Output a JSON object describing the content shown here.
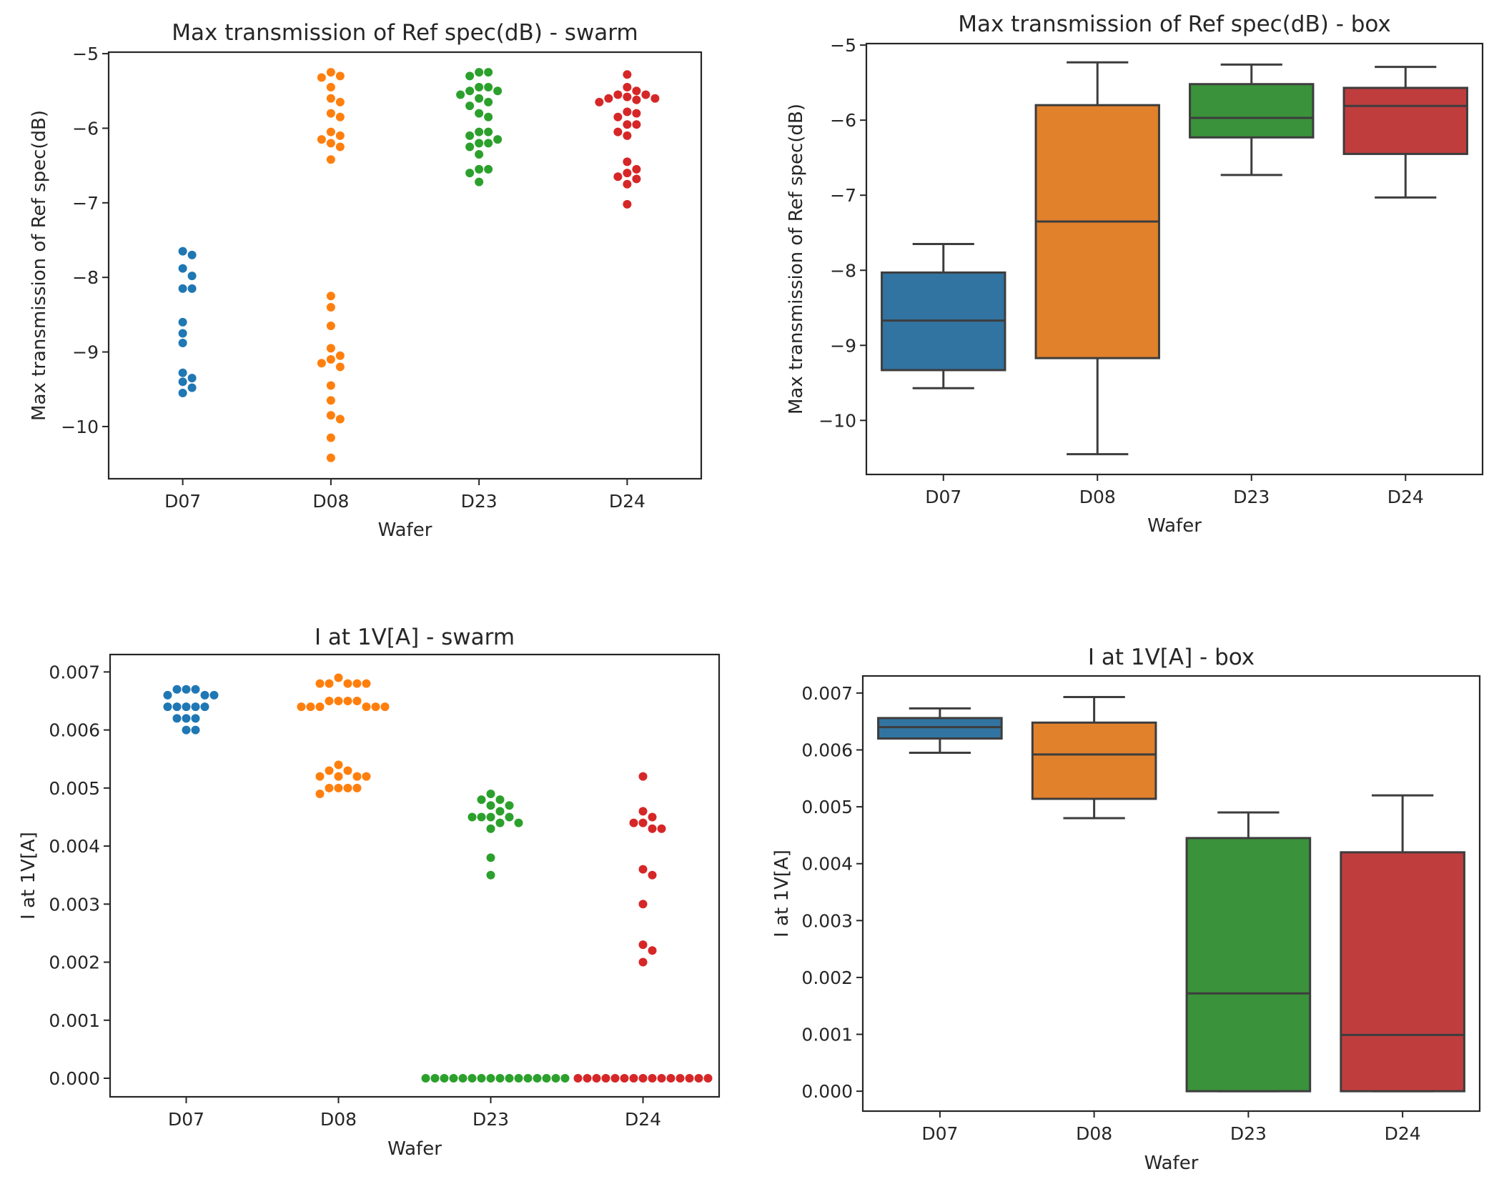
{
  "colors": {
    "D07": "#1f77b4",
    "D08": "#ff7f0e",
    "D23": "#2ca02c",
    "D24": "#d62728",
    "box_D07": "#3274a1",
    "box_D08": "#e1812c",
    "box_D23": "#3a923a",
    "box_D24": "#c03d3e",
    "line": "#3d3d3d"
  },
  "chart_data": [
    {
      "id": "swarm1",
      "type": "scatter",
      "title": "Max transmission of Ref spec(dB) - swarm",
      "xlabel": "Wafer",
      "ylabel": "Max transmission of Ref spec(dB)",
      "categories": [
        "D07",
        "D08",
        "D23",
        "D24"
      ],
      "ylim": [
        -10.7,
        -4.98
      ],
      "yticks": [
        -5,
        -6,
        -7,
        -8,
        -9,
        -10
      ],
      "ytick_labels": [
        "−5",
        "−6",
        "−7",
        "−8",
        "−9",
        "−10"
      ],
      "series": [
        {
          "name": "D07",
          "values": [
            -7.65,
            -7.7,
            -7.88,
            -7.98,
            -8.15,
            -8.15,
            -8.6,
            -8.75,
            -8.88,
            -9.28,
            -9.35,
            -9.4,
            -9.48,
            -9.55
          ]
        },
        {
          "name": "D08",
          "values": [
            -5.25,
            -5.3,
            -5.32,
            -5.45,
            -5.6,
            -5.65,
            -5.8,
            -5.85,
            -6.05,
            -6.1,
            -6.15,
            -6.2,
            -6.25,
            -6.42,
            -8.25,
            -8.4,
            -8.65,
            -8.95,
            -9.05,
            -9.1,
            -9.15,
            -9.2,
            -9.45,
            -9.65,
            -9.85,
            -9.9,
            -10.15,
            -10.42
          ]
        },
        {
          "name": "D23",
          "values": [
            -5.25,
            -5.25,
            -5.3,
            -5.45,
            -5.45,
            -5.5,
            -5.5,
            -5.55,
            -5.6,
            -5.65,
            -5.7,
            -5.8,
            -5.85,
            -6.05,
            -6.05,
            -6.1,
            -6.15,
            -6.2,
            -6.2,
            -6.25,
            -6.35,
            -6.55,
            -6.55,
            -6.6,
            -6.72
          ]
        },
        {
          "name": "D24",
          "values": [
            -5.28,
            -5.45,
            -5.5,
            -5.55,
            -5.55,
            -5.58,
            -5.6,
            -5.6,
            -5.62,
            -5.65,
            -5.78,
            -5.8,
            -5.85,
            -5.95,
            -5.95,
            -6.05,
            -6.1,
            -6.45,
            -6.55,
            -6.6,
            -6.65,
            -6.68,
            -6.75,
            -7.02
          ]
        }
      ]
    },
    {
      "id": "box1",
      "type": "box",
      "title": "Max transmission of Ref spec(dB) - box",
      "xlabel": "Wafer",
      "ylabel": "Max transmission of Ref spec(dB)",
      "categories": [
        "D07",
        "D08",
        "D23",
        "D24"
      ],
      "ylim": [
        -10.72,
        -4.98
      ],
      "yticks": [
        -5,
        -6,
        -7,
        -8,
        -9,
        -10
      ],
      "ytick_labels": [
        "−5",
        "−6",
        "−7",
        "−8",
        "−9",
        "−10"
      ],
      "boxes": [
        {
          "name": "D07",
          "whislo": -9.57,
          "q1": -9.33,
          "med": -8.67,
          "q3": -8.03,
          "whishi": -7.65
        },
        {
          "name": "D08",
          "whislo": -10.45,
          "q1": -9.17,
          "med": -7.35,
          "q3": -5.8,
          "whishi": -5.23
        },
        {
          "name": "D23",
          "whislo": -6.73,
          "q1": -6.23,
          "med": -5.97,
          "q3": -5.52,
          "whishi": -5.26
        },
        {
          "name": "D24",
          "whislo": -7.03,
          "q1": -6.45,
          "med": -5.81,
          "q3": -5.57,
          "whishi": -5.29
        }
      ]
    },
    {
      "id": "swarm2",
      "type": "scatter",
      "title": "I at 1V[A] - swarm",
      "xlabel": "Wafer",
      "ylabel": "I at 1V[A]",
      "categories": [
        "D07",
        "D08",
        "D23",
        "D24"
      ],
      "ylim": [
        -0.00032,
        0.0073
      ],
      "yticks": [
        0,
        0.001,
        0.002,
        0.003,
        0.004,
        0.005,
        0.006,
        0.007
      ],
      "ytick_labels": [
        "0.000",
        "0.001",
        "0.002",
        "0.003",
        "0.004",
        "0.005",
        "0.006",
        "0.007"
      ],
      "series": [
        {
          "name": "D07",
          "values": [
            0.0067,
            0.0067,
            0.0067,
            0.0066,
            0.0066,
            0.0066,
            0.0064,
            0.0064,
            0.0064,
            0.0064,
            0.0064,
            0.0062,
            0.0062,
            0.0062,
            0.006,
            0.006
          ]
        },
        {
          "name": "D08",
          "values": [
            0.0069,
            0.0068,
            0.0068,
            0.0068,
            0.0068,
            0.0068,
            0.0065,
            0.0065,
            0.0065,
            0.0065,
            0.0064,
            0.0064,
            0.0064,
            0.0064,
            0.0064,
            0.0064,
            0.0054,
            0.0053,
            0.0053,
            0.0052,
            0.0052,
            0.0052,
            0.0052,
            0.005,
            0.005,
            0.005,
            0.005,
            0.0049
          ]
        },
        {
          "name": "D23",
          "values": [
            0.0049,
            0.0048,
            0.0048,
            0.0047,
            0.0047,
            0.0046,
            0.0045,
            0.0045,
            0.0045,
            0.0045,
            0.0044,
            0.0044,
            0.0043,
            0.0038,
            0.0035,
            0,
            0,
            0,
            0,
            0,
            0,
            0,
            0,
            0,
            0,
            0,
            0,
            0,
            0,
            0,
            0
          ]
        },
        {
          "name": "D24",
          "values": [
            0.0052,
            0.0046,
            0.0045,
            0.0044,
            0.0044,
            0.0043,
            0.0043,
            0.0036,
            0.0035,
            0.003,
            0.0023,
            0.0022,
            0.002,
            0,
            0,
            0,
            0,
            0,
            0,
            0,
            0,
            0,
            0,
            0,
            0,
            0,
            0,
            0
          ]
        }
      ]
    },
    {
      "id": "box2",
      "type": "box",
      "title": "I at 1V[A] - box",
      "xlabel": "Wafer",
      "ylabel": "I at 1V[A]",
      "categories": [
        "D07",
        "D08",
        "D23",
        "D24"
      ],
      "ylim": [
        -0.00035,
        0.0073
      ],
      "yticks": [
        0,
        0.001,
        0.002,
        0.003,
        0.004,
        0.005,
        0.006,
        0.007
      ],
      "ytick_labels": [
        "0.000",
        "0.001",
        "0.002",
        "0.003",
        "0.004",
        "0.005",
        "0.006",
        "0.007"
      ],
      "boxes": [
        {
          "name": "D07",
          "whislo": 0.00595,
          "q1": 0.0062,
          "med": 0.0064,
          "q3": 0.00656,
          "whishi": 0.00673
        },
        {
          "name": "D08",
          "whislo": 0.0048,
          "q1": 0.00514,
          "med": 0.00592,
          "q3": 0.00648,
          "whishi": 0.00693
        },
        {
          "name": "D23",
          "whislo": 0.0,
          "q1": 0.0,
          "med": 0.00172,
          "q3": 0.00445,
          "whishi": 0.0049
        },
        {
          "name": "D24",
          "whislo": 0.0,
          "q1": 0.0,
          "med": 0.00099,
          "q3": 0.0042,
          "whishi": 0.0052
        }
      ]
    }
  ]
}
